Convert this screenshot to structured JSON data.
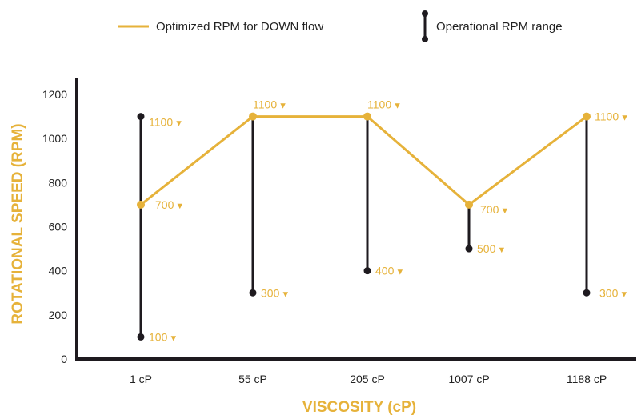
{
  "chart_data": {
    "type": "line",
    "title": "",
    "xlabel": "VISCOSITY (cP)",
    "ylabel": "ROTATIONAL SPEED (RPM)",
    "categories": [
      "1 cP",
      "55 cP",
      "205 cP",
      "1007 cP",
      "1188 cP"
    ],
    "ylim": [
      0,
      1200
    ],
    "yticks": [
      0,
      200,
      400,
      600,
      800,
      1000,
      1200
    ],
    "grid": false,
    "legend_position": "top",
    "series": [
      {
        "name": "Optimized RPM for DOWN flow",
        "kind": "line",
        "color": "#E6B23A",
        "values": [
          700,
          1100,
          1100,
          700,
          1100
        ],
        "labels": [
          "700",
          "1100",
          "1100",
          "700",
          "1100"
        ]
      },
      {
        "name": "Operational RPM range",
        "kind": "range",
        "color": "#1e1a1f",
        "min": [
          100,
          300,
          400,
          500,
          300
        ],
        "max": [
          1100,
          1100,
          1100,
          700,
          1100
        ],
        "min_labels": [
          "100",
          "300",
          "400",
          "500",
          "300"
        ],
        "max_labels": [
          "1100",
          "",
          "",
          "",
          ""
        ]
      }
    ],
    "marker_glyph": "▼",
    "colors": {
      "accent": "#E6B23A",
      "range": "#1e1a1f",
      "axis": "#1e1a1f"
    }
  }
}
